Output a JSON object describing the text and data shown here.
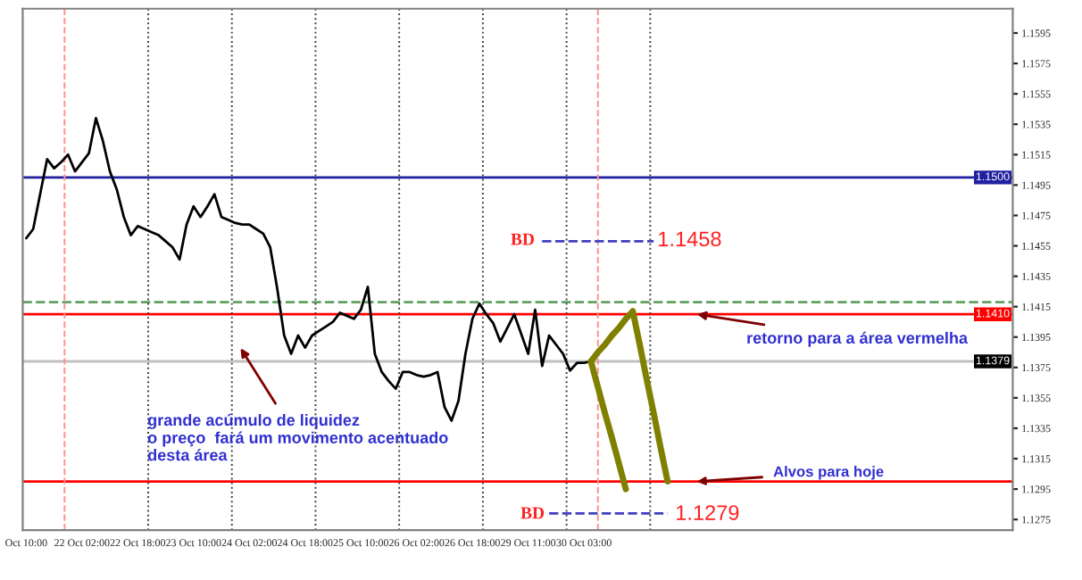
{
  "chart_data": {
    "type": "line",
    "categories": [
      "Oct 10:00",
      null,
      null,
      null,
      null,
      null,
      null,
      null,
      "22 Oct 02:00",
      null,
      null,
      null,
      null,
      null,
      null,
      null,
      "22 Oct 18:00",
      null,
      null,
      null,
      null,
      null,
      null,
      null,
      "23 Oct 10:00",
      null,
      null,
      null,
      null,
      null,
      null,
      null,
      "24 Oct 02:00",
      null,
      null,
      null,
      null,
      null,
      null,
      null,
      "24 Oct 18:00",
      null,
      null,
      null,
      null,
      null,
      null,
      null,
      "25 Oct 10:00",
      null,
      null,
      null,
      null,
      null,
      null,
      null,
      "26 Oct 02:00",
      null,
      null,
      null,
      null,
      null,
      null,
      null,
      "26 Oct 18:00",
      null,
      null,
      null,
      null,
      null,
      null,
      null,
      "29 Oct 11:00",
      null,
      null,
      null,
      null,
      null,
      null,
      null,
      "30 Oct 03:00",
      null,
      null,
      null,
      null,
      null,
      null,
      null,
      null,
      null,
      null,
      null,
      null,
      null,
      null,
      null,
      null,
      null,
      null,
      null,
      null,
      null,
      null,
      null,
      null,
      null,
      null,
      null,
      null,
      null,
      null,
      null,
      null,
      null,
      null,
      null,
      null,
      null,
      null,
      null,
      null,
      null,
      null,
      null,
      null,
      null,
      null,
      null,
      null,
      null,
      null,
      null,
      null,
      null,
      null,
      null,
      null,
      null,
      null,
      null,
      null,
      null
    ],
    "ylim": [
      1.1268,
      1.1611
    ],
    "yticks": [
      1.1595,
      1.1575,
      1.1555,
      1.1535,
      1.1515,
      1.1495,
      1.1475,
      1.1455,
      1.1435,
      1.1415,
      1.1395,
      1.1375,
      1.1355,
      1.1335,
      1.1315,
      1.1295,
      1.1275
    ],
    "grid": false,
    "series": [
      {
        "color": "#000000",
        "values": [
          1.146,
          1.1466,
          1.1489,
          1.1512,
          1.1506,
          1.151,
          1.1515,
          1.1504,
          1.151,
          1.1516,
          1.1539,
          1.1524,
          1.1504,
          1.1492,
          1.1474,
          1.1462,
          1.1468,
          1.1466,
          1.1464,
          1.1462,
          1.1458,
          1.1454,
          1.1446,
          1.1469,
          1.1481,
          1.1474,
          1.1481,
          1.1489,
          1.1474,
          1.1472,
          1.147,
          1.1469,
          1.1469,
          1.1466,
          1.1463,
          1.1454,
          1.1427,
          1.1396,
          1.1384,
          1.1396,
          1.1388,
          1.1396,
          1.1399,
          1.1402,
          1.1405,
          1.1411,
          1.1409,
          1.1407,
          1.1413,
          1.1428,
          1.1384,
          1.1372,
          1.1366,
          1.1361,
          1.1372,
          1.1372,
          1.137,
          1.1369,
          1.137,
          1.1372,
          1.1349,
          1.134,
          1.1353,
          1.1384,
          1.1407,
          1.1417,
          1.141,
          1.1404,
          1.1392,
          1.1401,
          1.141,
          1.1397,
          1.1384,
          1.1413,
          1.1376,
          1.1396,
          1.139,
          1.1384,
          1.1373,
          1.1378,
          1.1378,
          1.1379,
          null,
          null,
          null,
          null,
          null,
          null,
          null,
          null,
          null,
          null,
          null,
          null,
          null,
          null,
          null,
          null,
          null,
          null,
          null,
          null,
          null,
          null,
          null,
          null,
          null,
          null,
          null,
          null,
          null,
          null,
          null,
          null,
          null,
          null,
          null,
          null,
          null,
          null,
          null,
          null,
          null,
          null,
          null,
          null,
          null,
          null,
          null,
          null,
          null,
          null,
          null,
          null,
          null,
          null,
          null,
          null,
          null,
          null,
          null,
          null
        ]
      },
      {
        "color": "#4040c0",
        "line_style": "dashed",
        "values": [
          null,
          null,
          null,
          null,
          null,
          null,
          null,
          null,
          null,
          null,
          null,
          null,
          null,
          null,
          null,
          null,
          null,
          null,
          null,
          null,
          null,
          null,
          null,
          null,
          null,
          null,
          null,
          null,
          null,
          null,
          null,
          null,
          null,
          null,
          null,
          null,
          null,
          null,
          null,
          null,
          null,
          null,
          null,
          null,
          null,
          null,
          null,
          null,
          null,
          null,
          null,
          null,
          null,
          null,
          null,
          null,
          null,
          null,
          null,
          null,
          null,
          null,
          null,
          null,
          null,
          null,
          null,
          null,
          null,
          null,
          null,
          null,
          null,
          null,
          1.1458,
          1.1458,
          1.1458,
          1.1458,
          1.1458,
          1.1458,
          1.1458,
          1.1458,
          1.1458,
          1.1458,
          1.1458,
          1.1458,
          1.1458,
          1.1458,
          1.1458,
          1.1458,
          1.1458,
          null,
          null,
          null,
          null,
          null,
          null,
          null,
          null,
          null,
          null,
          null,
          null,
          null,
          null,
          null,
          null,
          null,
          null,
          null,
          null,
          null,
          null,
          null,
          null,
          null,
          null,
          null,
          null,
          null,
          null,
          null,
          null,
          null,
          null,
          null,
          null,
          null,
          null,
          null,
          null,
          null,
          null,
          null,
          null,
          null,
          null,
          null,
          null,
          null,
          null,
          null
        ]
      },
      {
        "color": "#4040c0",
        "line_style": "dashed",
        "values": [
          null,
          null,
          null,
          null,
          null,
          null,
          null,
          null,
          null,
          null,
          null,
          null,
          null,
          null,
          null,
          null,
          null,
          null,
          null,
          null,
          null,
          null,
          null,
          null,
          null,
          null,
          null,
          null,
          null,
          null,
          null,
          null,
          null,
          null,
          null,
          null,
          null,
          null,
          null,
          null,
          null,
          null,
          null,
          null,
          null,
          null,
          null,
          null,
          null,
          null,
          null,
          null,
          null,
          null,
          null,
          null,
          null,
          null,
          null,
          null,
          null,
          null,
          null,
          null,
          null,
          null,
          null,
          null,
          null,
          null,
          null,
          null,
          null,
          null,
          null,
          1.1279,
          1.1279,
          1.1279,
          1.1279,
          1.1279,
          1.1279,
          1.1279,
          1.1279,
          1.1279,
          1.1279,
          1.1279,
          1.1279,
          1.1279,
          1.1279,
          1.1279,
          1.1279,
          1.1279,
          1.1279,
          null,
          null,
          null,
          null,
          null,
          null,
          null,
          null,
          null,
          null,
          null,
          null,
          null,
          null,
          null,
          null,
          null,
          null,
          null,
          null,
          null,
          null,
          null,
          null,
          null,
          null,
          null,
          null,
          null,
          null,
          null,
          null,
          null,
          null,
          null,
          null,
          null,
          null,
          null,
          null,
          null,
          null,
          null,
          null,
          null,
          null,
          null,
          null,
          null
        ]
      },
      {
        "color": "#808000",
        "values": [
          null,
          null,
          null,
          null,
          null,
          null,
          null,
          null,
          null,
          null,
          null,
          null,
          null,
          null,
          null,
          null,
          null,
          null,
          null,
          null,
          null,
          null,
          null,
          null,
          null,
          null,
          null,
          null,
          null,
          null,
          null,
          null,
          null,
          null,
          null,
          null,
          null,
          null,
          null,
          null,
          null,
          null,
          null,
          null,
          null,
          null,
          null,
          null,
          null,
          null,
          null,
          null,
          null,
          null,
          null,
          null,
          null,
          null,
          null,
          null,
          null,
          null,
          null,
          null,
          null,
          null,
          null,
          null,
          null,
          null,
          null,
          null,
          null,
          null,
          null,
          null,
          null,
          null,
          null,
          null,
          null,
          1.1379,
          1.1385,
          1.139,
          1.1396,
          1.1401,
          1.1407,
          1.1412,
          1.139,
          1.1367,
          1.1345,
          1.1322,
          1.13,
          null,
          null,
          null,
          null,
          null,
          null,
          null,
          null,
          null,
          null,
          null,
          null,
          null,
          null,
          null,
          null,
          null,
          null,
          null,
          null,
          null,
          null,
          null,
          null,
          null,
          null,
          null,
          null,
          null,
          null,
          null,
          null,
          null,
          null,
          null,
          null,
          null,
          null,
          null,
          null,
          null,
          null,
          null,
          null,
          null,
          null,
          null,
          null,
          null
        ]
      },
      {
        "color": "#808000",
        "values": [
          null,
          null,
          null,
          null,
          null,
          null,
          null,
          null,
          null,
          null,
          null,
          null,
          null,
          null,
          null,
          null,
          null,
          null,
          null,
          null,
          null,
          null,
          null,
          null,
          null,
          null,
          null,
          null,
          null,
          null,
          null,
          null,
          null,
          null,
          null,
          null,
          null,
          null,
          null,
          null,
          null,
          null,
          null,
          null,
          null,
          null,
          null,
          null,
          null,
          null,
          null,
          null,
          null,
          null,
          null,
          null,
          null,
          null,
          null,
          null,
          null,
          null,
          null,
          null,
          null,
          null,
          null,
          null,
          null,
          null,
          null,
          null,
          null,
          null,
          null,
          null,
          null,
          null,
          null,
          null,
          null,
          1.1379,
          1.1362,
          1.1345,
          1.1329,
          1.1312,
          1.1295,
          null,
          null,
          null,
          null,
          null,
          null,
          null,
          null,
          null,
          null,
          null,
          null,
          null,
          null,
          null,
          null,
          null,
          null,
          null,
          null,
          null,
          null,
          null,
          null,
          null,
          null,
          null,
          null,
          null,
          null,
          null,
          null,
          null,
          null,
          null,
          null,
          null,
          null,
          null,
          null,
          null,
          null,
          null,
          null,
          null,
          null,
          null,
          null,
          null,
          null,
          null,
          null,
          null,
          null,
          null
        ]
      }
    ],
    "ref_lines": [
      {
        "axis": "y",
        "value": 1.15,
        "label": "1.1500",
        "color": "#2020a0"
      },
      {
        "axis": "y",
        "value": 1.141,
        "label": "1.1410",
        "color": "#ff0000"
      },
      {
        "axis": "y",
        "value": 1.1379,
        "label": "1.1379",
        "color": "#c0c0c0"
      },
      {
        "axis": "y",
        "value": 1.1418,
        "color": "#60a060",
        "line_style": "dashed"
      },
      {
        "axis": "y",
        "value": 1.13,
        "color": "#ff0000"
      }
    ],
    "annotations": [
      "grande acúmulo de liquidez\no preço  fará um movimento acentuado\ndesta área",
      {
        "text": "retorno para a área vermelha",
        "y": 1.141
      },
      {
        "text": "Alvos para hoje",
        "y": 1.13
      },
      "BD",
      "1.1458",
      "BD",
      "1.1279"
    ]
  }
}
